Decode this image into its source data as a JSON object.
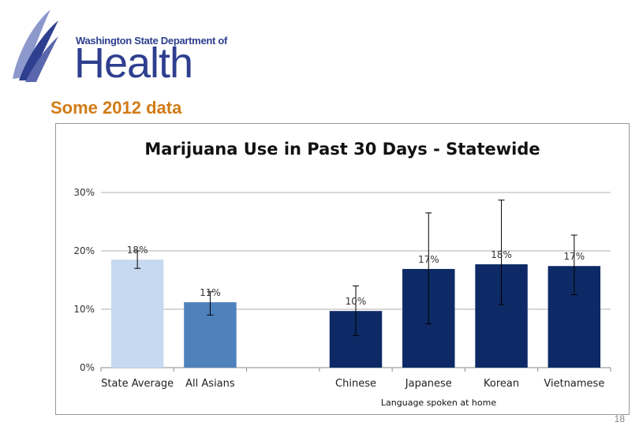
{
  "header": {
    "org_name": "Washington State Department of",
    "org_title": "Health",
    "subtitle": "Some 2012 data"
  },
  "colors": {
    "state_average": "#c6d9f1",
    "all_asians": "#4f81bd",
    "languages": "#0d2a66",
    "subtitle": "#d27b16",
    "logo_blue": "#2e3f8f",
    "logo_light": "#8d98cc"
  },
  "chart_data": {
    "type": "bar",
    "title": "Marijuana Use in Past 30 Days  - Statewide",
    "xlabel": "Language spoken at home",
    "ylabel": "",
    "ylim": [
      0,
      30
    ],
    "yticks": [
      0,
      10,
      20,
      30
    ],
    "ytick_labels": [
      "0%",
      "10%",
      "20%",
      "30%"
    ],
    "grid": true,
    "categories": [
      "State Average",
      "All Asians",
      "",
      "Chinese",
      "Japanese",
      "Korean",
      "Vietnamese"
    ],
    "values": [
      18.5,
      11.2,
      null,
      9.7,
      16.9,
      17.7,
      17.4
    ],
    "data_labels": [
      "18%",
      "11%",
      "",
      "10%",
      "17%",
      "18%",
      "17%"
    ],
    "error_low": [
      17.0,
      9.0,
      null,
      5.5,
      7.5,
      10.8,
      12.5
    ],
    "error_high": [
      20.0,
      13.0,
      null,
      14.0,
      26.5,
      28.7,
      22.7
    ],
    "bar_colors": [
      "#c6d9f1",
      "#4f81bd",
      null,
      "#0d2a66",
      "#0d2a66",
      "#0d2a66",
      "#0d2a66"
    ]
  },
  "footer": {
    "page_number": "18"
  }
}
